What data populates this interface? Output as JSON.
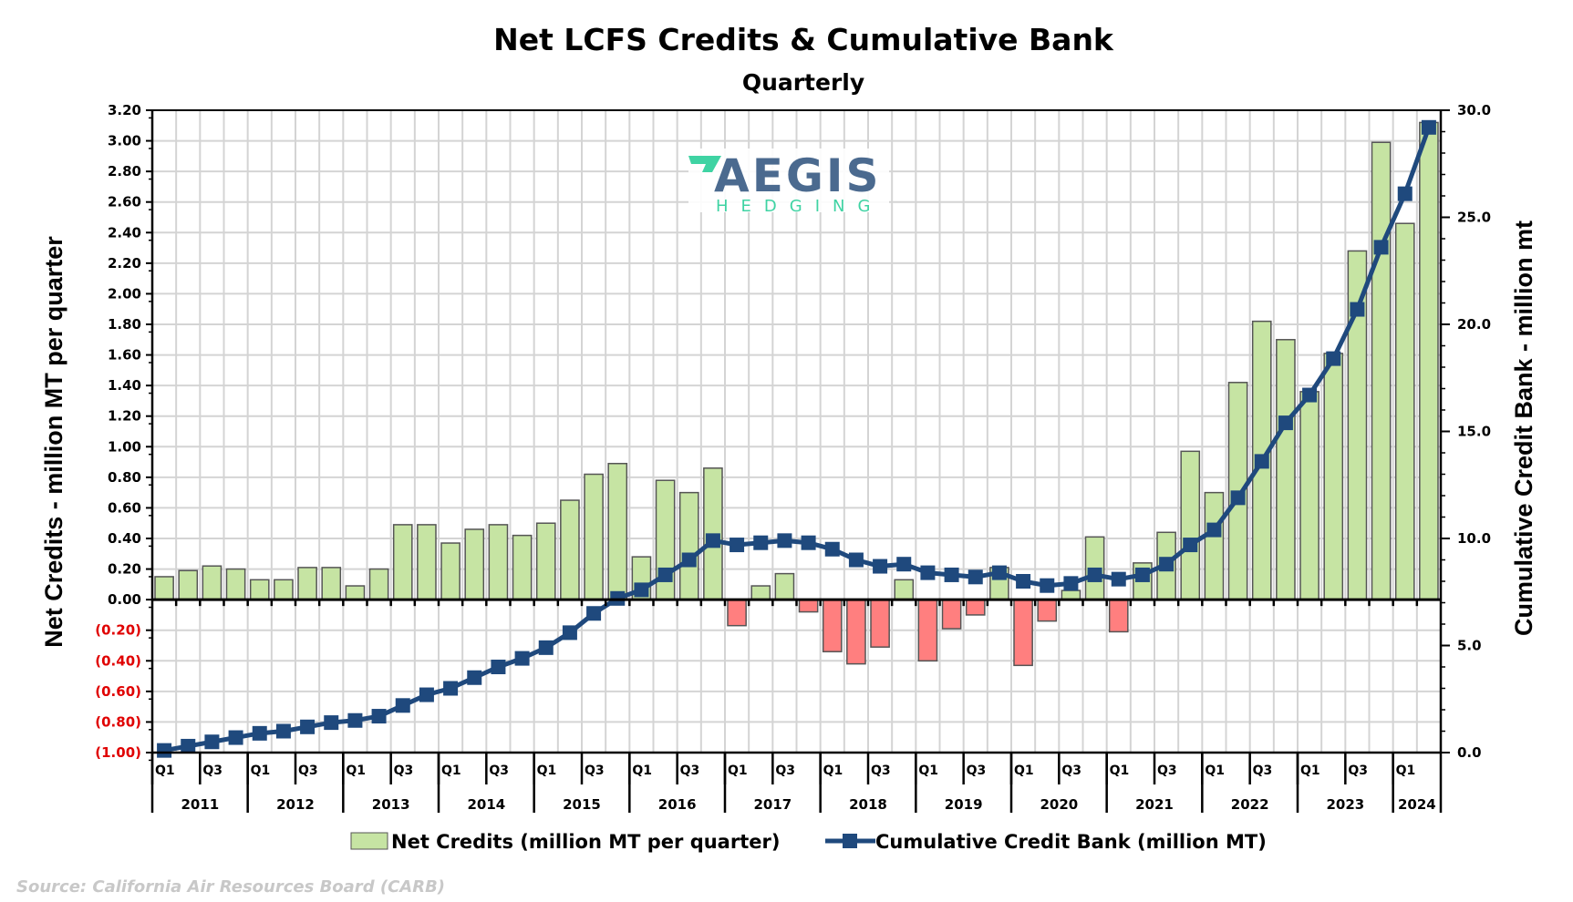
{
  "chart_data": {
    "type": "bar+line",
    "title": "Net LCFS Credits & Cumulative Bank",
    "subtitle": "Quarterly",
    "ylabel": "Net Credits - million MT per quarter",
    "y2label": "Cumulative Credit Bank - million mt",
    "ylim": [
      -1.0,
      3.2
    ],
    "y2lim": [
      0,
      30
    ],
    "y_ticks": [
      "3.20",
      "3.00",
      "2.80",
      "2.60",
      "2.40",
      "2.20",
      "2.00",
      "1.80",
      "1.60",
      "1.40",
      "1.20",
      "1.00",
      "0.80",
      "0.60",
      "0.40",
      "0.20",
      "0.00",
      "(0.20)",
      "(0.40)",
      "(0.60)",
      "(0.80)",
      "(1.00)"
    ],
    "y2_ticks": [
      "30.0",
      "25.0",
      "20.0",
      "15.0",
      "10.0",
      "5.0",
      "0.0"
    ],
    "grid": true,
    "legend_position": "bottom",
    "years": [
      "2011",
      "2012",
      "2013",
      "2014",
      "2015",
      "2016",
      "2017",
      "2018",
      "2019",
      "2020",
      "2021",
      "2022",
      "2023",
      "2024"
    ],
    "quarter_labels": [
      "Q1",
      "Q3"
    ],
    "series": [
      {
        "name": "Net Credits (million MT per quarter)",
        "type": "bar",
        "color": "#c6e4a3",
        "negative_color": "#ff7f7f",
        "values": [
          0.15,
          0.19,
          0.22,
          0.2,
          0.13,
          0.13,
          0.21,
          0.21,
          0.09,
          0.2,
          0.49,
          0.49,
          0.37,
          0.46,
          0.49,
          0.42,
          0.5,
          0.65,
          0.82,
          0.89,
          0.28,
          0.78,
          0.7,
          0.86,
          -0.17,
          0.09,
          0.17,
          -0.08,
          -0.34,
          -0.42,
          -0.31,
          0.13,
          -0.4,
          -0.19,
          -0.1,
          0.21,
          -0.43,
          -0.14,
          0.06,
          0.41,
          -0.21,
          0.24,
          0.44,
          0.97,
          0.7,
          1.42,
          1.82,
          1.7,
          1.36,
          1.61,
          2.28,
          2.99,
          2.46,
          3.12
        ]
      },
      {
        "name": "Cumulative Credit Bank (million MT)",
        "type": "line",
        "axis": "right",
        "color": "#1f497d",
        "values": [
          0.1,
          0.3,
          0.5,
          0.7,
          0.9,
          1.0,
          1.2,
          1.4,
          1.5,
          1.7,
          2.2,
          2.7,
          3.0,
          3.5,
          4.0,
          4.4,
          4.9,
          5.6,
          6.5,
          7.2,
          7.6,
          8.3,
          9.0,
          9.9,
          9.7,
          9.8,
          9.9,
          9.8,
          9.5,
          9.0,
          8.7,
          8.8,
          8.4,
          8.3,
          8.2,
          8.4,
          8.0,
          7.8,
          7.9,
          8.3,
          8.1,
          8.3,
          8.8,
          9.7,
          10.4,
          11.9,
          13.6,
          15.4,
          16.7,
          18.4,
          20.7,
          23.6,
          26.1,
          29.2
        ]
      }
    ]
  },
  "logo": {
    "name": "AEGIS",
    "sub": "HEDGING",
    "color": "#4b6a8f",
    "accent": "#3fd3a3"
  },
  "source": "Source: California Air Resources Board (CARB)"
}
